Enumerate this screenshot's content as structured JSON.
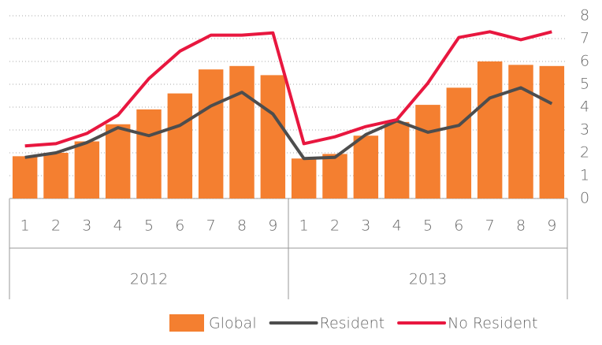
{
  "chart_data": {
    "type": "bar-line",
    "categories": [
      "1",
      "2",
      "3",
      "4",
      "5",
      "6",
      "7",
      "8",
      "9",
      "1",
      "2",
      "3",
      "4",
      "5",
      "6",
      "7",
      "8",
      "9"
    ],
    "groups": [
      "2012",
      "2013"
    ],
    "series": [
      {
        "name": "Global",
        "type": "bar",
        "color": "#f47f30",
        "values": [
          1.85,
          2.0,
          2.5,
          3.25,
          3.9,
          4.6,
          5.65,
          5.8,
          5.4,
          1.75,
          1.95,
          2.75,
          3.35,
          4.1,
          4.85,
          6.0,
          5.85,
          5.8
        ]
      },
      {
        "name": "Resident",
        "type": "line",
        "color": "#4d4d4d",
        "values": [
          1.8,
          2.0,
          2.45,
          3.1,
          2.75,
          3.2,
          4.05,
          4.65,
          3.7,
          1.75,
          1.8,
          2.8,
          3.4,
          2.9,
          3.2,
          4.4,
          4.85,
          4.15
        ]
      },
      {
        "name": "No Resident",
        "type": "line",
        "color": "#e8173f",
        "values": [
          2.3,
          2.4,
          2.85,
          3.65,
          5.25,
          6.45,
          7.15,
          7.15,
          7.25,
          2.4,
          2.7,
          3.15,
          3.45,
          5.05,
          7.05,
          7.3,
          6.95,
          7.3
        ]
      }
    ],
    "ylim": [
      0,
      8
    ],
    "yticks": [
      0,
      1,
      2,
      3,
      4,
      5,
      6,
      7,
      8
    ],
    "grid": true
  }
}
